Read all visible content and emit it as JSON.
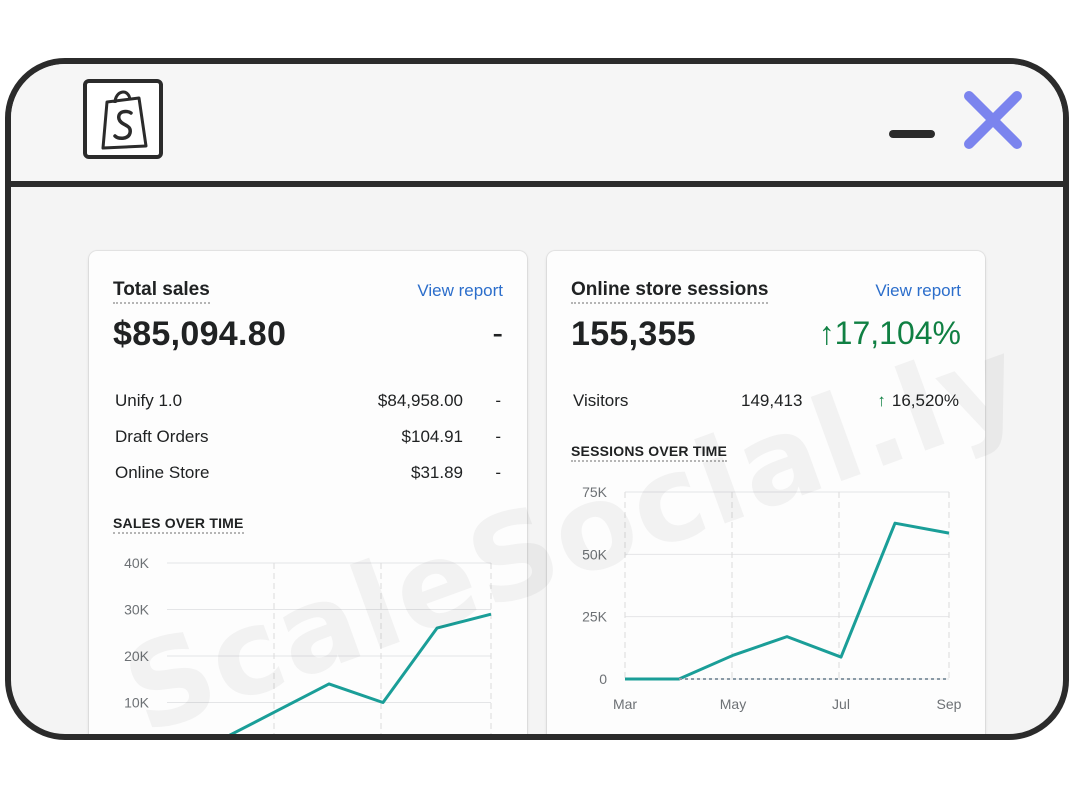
{
  "window": {
    "close_icon": "x-icon",
    "minimize_icon": "minus-icon",
    "logo_icon": "shopping-bag-icon",
    "accent": "#7b84ee"
  },
  "watermark": "ScaleSocial.ly",
  "total_sales": {
    "title": "Total sales",
    "view_report": "View report",
    "value": "$85,094.80",
    "change": "-",
    "rows": [
      {
        "name": "Unify 1.0",
        "value": "$84,958.00",
        "change": "-"
      },
      {
        "name": "Draft Orders",
        "value": "$104.91",
        "change": "-"
      },
      {
        "name": "Online Store",
        "value": "$31.89",
        "change": "-"
      }
    ],
    "chart_label": "SALES OVER TIME"
  },
  "sessions": {
    "title": "Online store sessions",
    "view_report": "View report",
    "value": "155,355",
    "change": "17,104%",
    "change_arrow": "↑",
    "rows": [
      {
        "name": "Visitors",
        "value": "149,413",
        "change": "16,520%",
        "arrow": "↑"
      }
    ],
    "chart_label": "SESSIONS OVER TIME"
  },
  "chart_data": [
    {
      "type": "line",
      "y_ticks": [
        "40K",
        "30K",
        "20K",
        "10K"
      ],
      "ylim": [
        0,
        40000
      ],
      "series": [
        {
          "values": [
            0,
            2000,
            8000,
            14000,
            10000,
            26000,
            29000
          ],
          "color": "#1a9e98"
        }
      ]
    },
    {
      "type": "line",
      "x_ticks": [
        "Mar",
        "May",
        "Jul",
        "Sep"
      ],
      "y_ticks": [
        "75K",
        "50K",
        "25K",
        "0"
      ],
      "ylim": [
        0,
        75000
      ],
      "series": [
        {
          "values": [
            0,
            0,
            9500,
            17000,
            8800,
            62500,
            58500
          ],
          "color": "#1a9e98"
        },
        {
          "values": [
            0,
            0,
            0,
            0,
            0,
            0,
            0
          ],
          "color": "#8a9aa6",
          "dashed": true
        }
      ]
    }
  ]
}
